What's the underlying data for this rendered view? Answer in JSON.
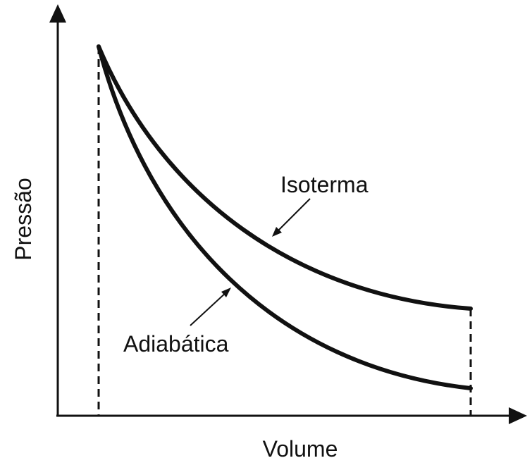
{
  "diagram": {
    "axes": {
      "x_label": "Volume",
      "y_label": "Pressão"
    },
    "curves": {
      "isotherm_label": "Isoterma",
      "adiabatic_label": "Adiabática"
    },
    "colors": {
      "ink": "#111111",
      "background": "#ffffff"
    }
  }
}
